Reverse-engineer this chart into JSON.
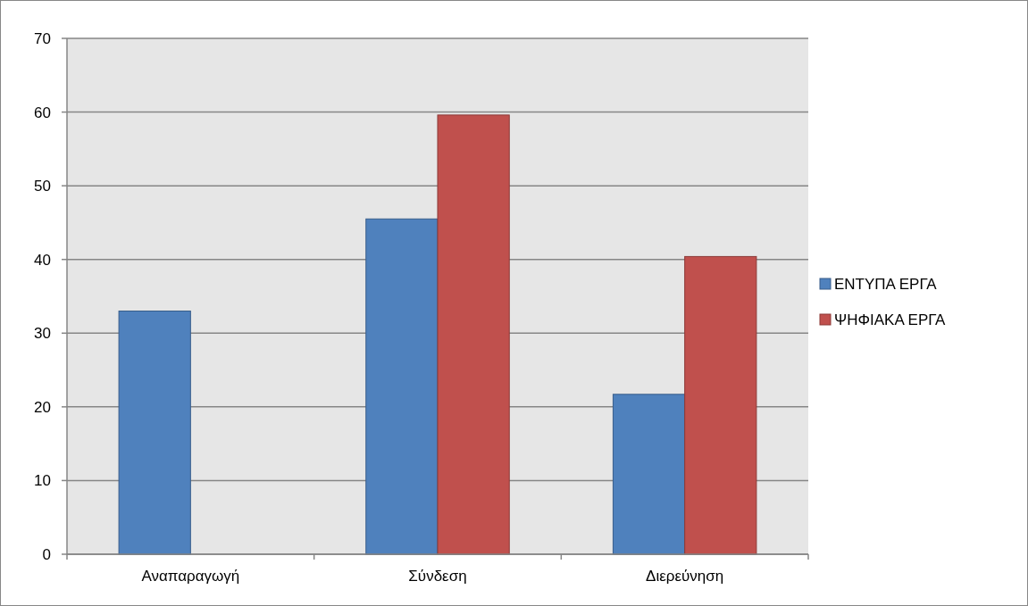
{
  "chart_data": {
    "type": "bar",
    "categories": [
      "Αναπαραγωγή",
      "Σύνδεση",
      "Διερεύνηση"
    ],
    "series": [
      {
        "name": "ΕΝΤΥΠΑ ΕΡΓΑ",
        "color": "#4f81bd",
        "values": [
          33,
          45.5,
          21.7
        ]
      },
      {
        "name": "ΨΗΦΙΑΚΑ ΕΡΓΑ",
        "color": "#c0504d",
        "values": [
          null,
          59.6,
          40.4
        ]
      }
    ],
    "ylim": [
      0,
      70
    ],
    "yticks": [
      0,
      10,
      20,
      30,
      40,
      50,
      60,
      70
    ],
    "grid": "y",
    "legend": "right"
  }
}
